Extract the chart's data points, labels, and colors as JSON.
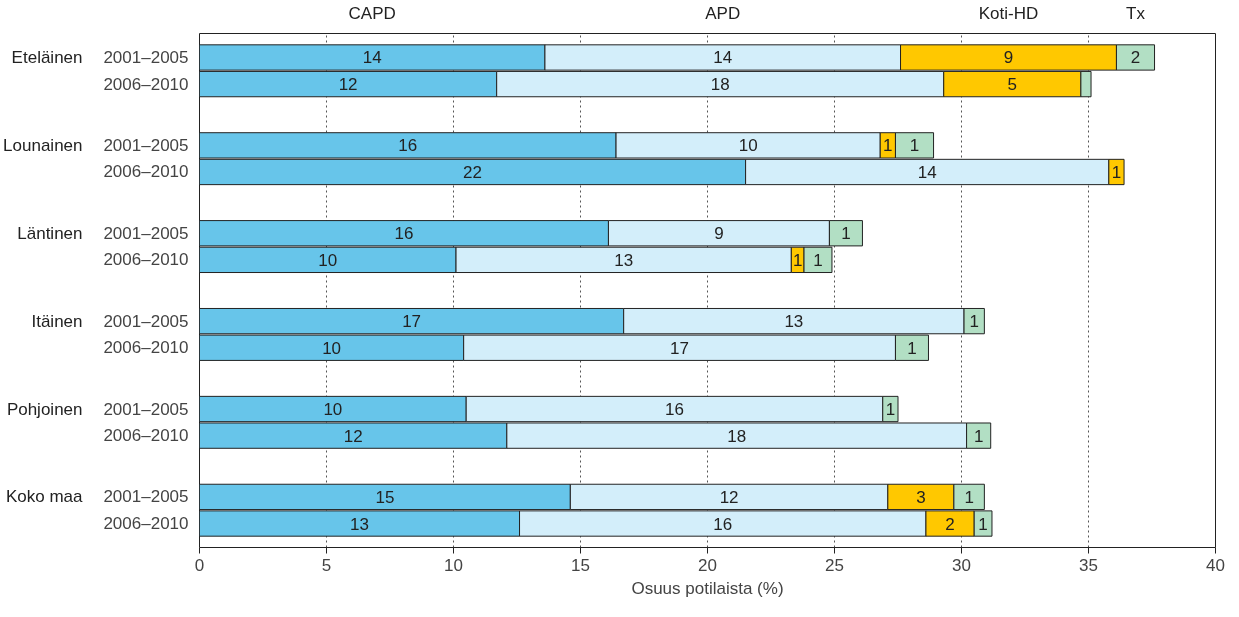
{
  "chart_data": {
    "type": "bar",
    "orientation": "horizontal",
    "stacked": true,
    "xlabel": "Osuus potilaista (%)",
    "categories": [
      "2001–2005",
      "2006–2010",
      "2001–2005",
      "2006–2010",
      "2001–2005",
      "2006–2010",
      "2001–2005",
      "2006–2010",
      "2001–2005",
      "2006–2010",
      "2001–2005",
      "2006–2010"
    ],
    "annotations": [
      "Eteläinen",
      "Lounainen",
      "Läntinen",
      "Itäinen",
      "Pohjoinen",
      "Koko maa"
    ],
    "series": [
      {
        "name": "CAPD",
        "color": "#67c5ea",
        "values": [
          13.6,
          11.7,
          16.4,
          21.5,
          16.1,
          10.1,
          16.7,
          10.4,
          10.5,
          12.1,
          14.6,
          12.6
        ],
        "value_labels": [
          "14",
          "12",
          "16",
          "22",
          "16",
          "10",
          "17",
          "10",
          "10",
          "12",
          "15",
          "13"
        ]
      },
      {
        "name": "APD",
        "color": "#d3eefa",
        "values": [
          14.0,
          17.6,
          10.4,
          14.3,
          8.7,
          13.2,
          13.4,
          17.0,
          16.4,
          18.1,
          12.5,
          16.0
        ],
        "value_labels": [
          "14",
          "18",
          "10",
          "14",
          "9",
          "13",
          "13",
          "17",
          "16",
          "18",
          "12",
          "16"
        ]
      },
      {
        "name": "Koti-HD",
        "color": "#ffc800",
        "values": [
          8.5,
          5.4,
          0.6,
          0.6,
          null,
          0.5,
          null,
          null,
          null,
          null,
          2.6,
          1.9
        ],
        "value_labels": [
          "9",
          "5",
          "1",
          "1",
          null,
          "1",
          null,
          null,
          null,
          null,
          "3",
          "2"
        ]
      },
      {
        "name": "Tx",
        "color": "#b2dfc4",
        "values": [
          1.5,
          0.4,
          1.5,
          null,
          1.3,
          1.1,
          0.8,
          1.3,
          0.6,
          0.95,
          1.2,
          0.7
        ],
        "value_labels": [
          "2",
          null,
          "1",
          null,
          "1",
          "1",
          "1",
          "1",
          "1",
          "1",
          "1",
          "1"
        ]
      }
    ],
    "xlim": [
      0,
      40
    ],
    "xticks": [
      0,
      5,
      10,
      15,
      20,
      25,
      30,
      35,
      40
    ],
    "grid": "x"
  }
}
